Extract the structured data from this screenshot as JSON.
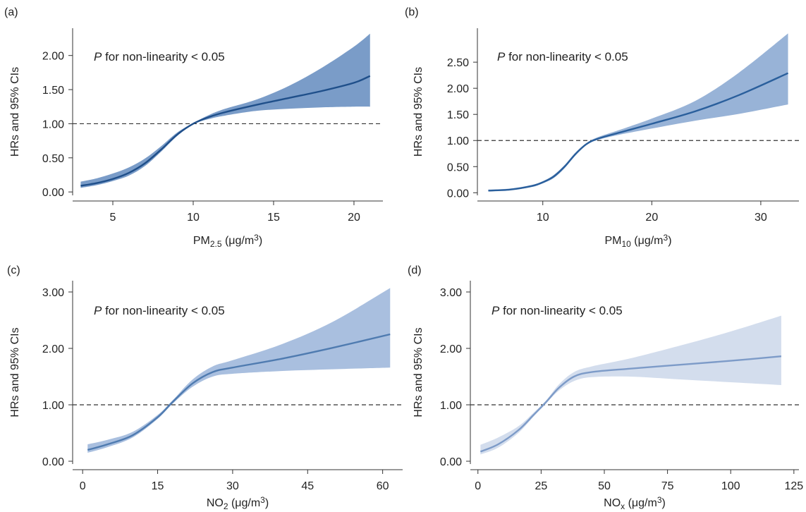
{
  "chart_data": [
    {
      "type": "line",
      "panel_label": "(a)",
      "annotation": {
        "italic": "P",
        "text": " for non-linearity < 0.05"
      },
      "xlabel": {
        "main": "PM",
        "sub": "2.5",
        "unit_pre": " (μg/m",
        "sup": "3",
        "unit_post": ")"
      },
      "ylabel": "HRs and 95% CIs",
      "xlim": [
        2.5,
        21.8
      ],
      "ylim": [
        -0.05,
        2.4
      ],
      "xticks": [
        5,
        10,
        15,
        20
      ],
      "xtick_labels": [
        "5",
        "10",
        "15",
        "20"
      ],
      "yticks": [
        0,
        0.5,
        1.0,
        1.5,
        2.0
      ],
      "ytick_labels": [
        "0.00",
        "0.50",
        "1.00",
        "1.50",
        "2.00"
      ],
      "reference_y": 1.0,
      "colors": {
        "line": "#1f4f8a",
        "band": "#7a9cc8"
      },
      "x": [
        3,
        4,
        5,
        6,
        7,
        8,
        9,
        10,
        11,
        12,
        14,
        16,
        18,
        20,
        21
      ],
      "y": [
        0.09,
        0.13,
        0.19,
        0.28,
        0.42,
        0.62,
        0.84,
        1.0,
        1.1,
        1.17,
        1.28,
        1.38,
        1.48,
        1.6,
        1.7
      ],
      "lower": [
        0.06,
        0.1,
        0.16,
        0.24,
        0.38,
        0.59,
        0.82,
        0.99,
        1.07,
        1.12,
        1.19,
        1.22,
        1.24,
        1.25,
        1.25
      ],
      "upper": [
        0.15,
        0.2,
        0.27,
        0.36,
        0.49,
        0.67,
        0.87,
        1.01,
        1.13,
        1.22,
        1.36,
        1.56,
        1.82,
        2.13,
        2.32
      ]
    },
    {
      "type": "line",
      "panel_label": "(b)",
      "annotation": {
        "italic": "P",
        "text": " for non-linearity < 0.05"
      },
      "xlabel": {
        "main": "PM",
        "sub": "10",
        "unit_pre": " (μg/m",
        "sup": "3",
        "unit_post": ")"
      },
      "ylabel": "HRs and 95% CIs",
      "xlim": [
        4,
        33.5
      ],
      "ylim": [
        -0.05,
        3.15
      ],
      "xticks": [
        10,
        20,
        30
      ],
      "xtick_labels": [
        "10",
        "20",
        "30"
      ],
      "yticks": [
        0,
        0.5,
        1.0,
        1.5,
        2.0,
        2.5
      ],
      "ytick_labels": [
        "0.00",
        "0.50",
        "1.00",
        "1.50",
        "2.00",
        "2.50"
      ],
      "reference_y": 1.0,
      "colors": {
        "line": "#2a5f9c",
        "band": "#98b3d7"
      },
      "x": [
        5,
        7,
        9,
        10,
        11,
        12,
        13,
        14,
        15,
        17,
        20,
        24,
        28,
        32.5
      ],
      "y": [
        0.04,
        0.06,
        0.13,
        0.2,
        0.31,
        0.5,
        0.74,
        0.93,
        1.03,
        1.15,
        1.32,
        1.56,
        1.87,
        2.29
      ],
      "lower": [
        0.03,
        0.05,
        0.11,
        0.18,
        0.28,
        0.47,
        0.72,
        0.92,
        1.01,
        1.11,
        1.23,
        1.38,
        1.51,
        1.69
      ],
      "upper": [
        0.06,
        0.08,
        0.15,
        0.22,
        0.34,
        0.53,
        0.77,
        0.95,
        1.06,
        1.2,
        1.42,
        1.76,
        2.3,
        3.05
      ]
    },
    {
      "type": "line",
      "panel_label": "(c)",
      "annotation": {
        "italic": "P",
        "text": " for non-linearity < 0.05"
      },
      "xlabel": {
        "main": "NO",
        "sub": "2",
        "unit_pre": " (μg/m",
        "sup": "3",
        "unit_post": ")"
      },
      "ylabel": "HRs and 95% CIs",
      "xlim": [
        -2,
        64
      ],
      "ylim": [
        -0.05,
        3.2
      ],
      "xticks": [
        0,
        15,
        30,
        45,
        60
      ],
      "xtick_labels": [
        "0",
        "15",
        "30",
        "45",
        "60"
      ],
      "yticks": [
        0,
        1.0,
        2.0,
        3.0
      ],
      "ytick_labels": [
        "0.00",
        "1.00",
        "2.00",
        "3.00"
      ],
      "reference_y": 1.0,
      "colors": {
        "line": "#4f7bb0",
        "band": "#a9bfdf"
      },
      "x": [
        1,
        5,
        10,
        15,
        18,
        22,
        26,
        30,
        40,
        50,
        61.5
      ],
      "y": [
        0.2,
        0.3,
        0.46,
        0.78,
        1.05,
        1.38,
        1.58,
        1.66,
        1.82,
        2.01,
        2.25
      ],
      "lower": [
        0.15,
        0.25,
        0.42,
        0.75,
        1.02,
        1.32,
        1.5,
        1.55,
        1.6,
        1.63,
        1.66
      ],
      "upper": [
        0.3,
        0.38,
        0.52,
        0.82,
        1.08,
        1.45,
        1.68,
        1.79,
        2.08,
        2.47,
        3.07
      ]
    },
    {
      "type": "line",
      "panel_label": "(d)",
      "annotation": {
        "italic": "P",
        "text": " for non-linearity < 0.05"
      },
      "xlabel": {
        "main": "NO",
        "sub": "x",
        "unit_pre": " (μg/m",
        "sup": "3",
        "unit_post": ")"
      },
      "ylabel": "HRs and 95% CIs",
      "xlim": [
        -3,
        127
      ],
      "ylim": [
        -0.05,
        3.2
      ],
      "xticks": [
        0,
        25,
        50,
        75,
        100,
        125
      ],
      "xtick_labels": [
        "0",
        "25",
        "50",
        "75",
        "100",
        "125"
      ],
      "yticks": [
        0,
        1.0,
        2.0,
        3.0
      ],
      "ytick_labels": [
        "0.00",
        "1.00",
        "2.00",
        "3.00"
      ],
      "reference_y": 1.0,
      "colors": {
        "line": "#7d9bc8",
        "band": "#d3dded"
      },
      "x": [
        1,
        8,
        16,
        22,
        27,
        32,
        38,
        45,
        60,
        80,
        100,
        120
      ],
      "y": [
        0.17,
        0.3,
        0.55,
        0.82,
        1.05,
        1.3,
        1.5,
        1.58,
        1.64,
        1.71,
        1.78,
        1.86
      ],
      "lower": [
        0.12,
        0.24,
        0.5,
        0.79,
        1.03,
        1.25,
        1.42,
        1.49,
        1.5,
        1.45,
        1.4,
        1.35
      ],
      "upper": [
        0.29,
        0.42,
        0.62,
        0.86,
        1.08,
        1.36,
        1.58,
        1.68,
        1.82,
        2.05,
        2.3,
        2.58
      ]
    }
  ]
}
